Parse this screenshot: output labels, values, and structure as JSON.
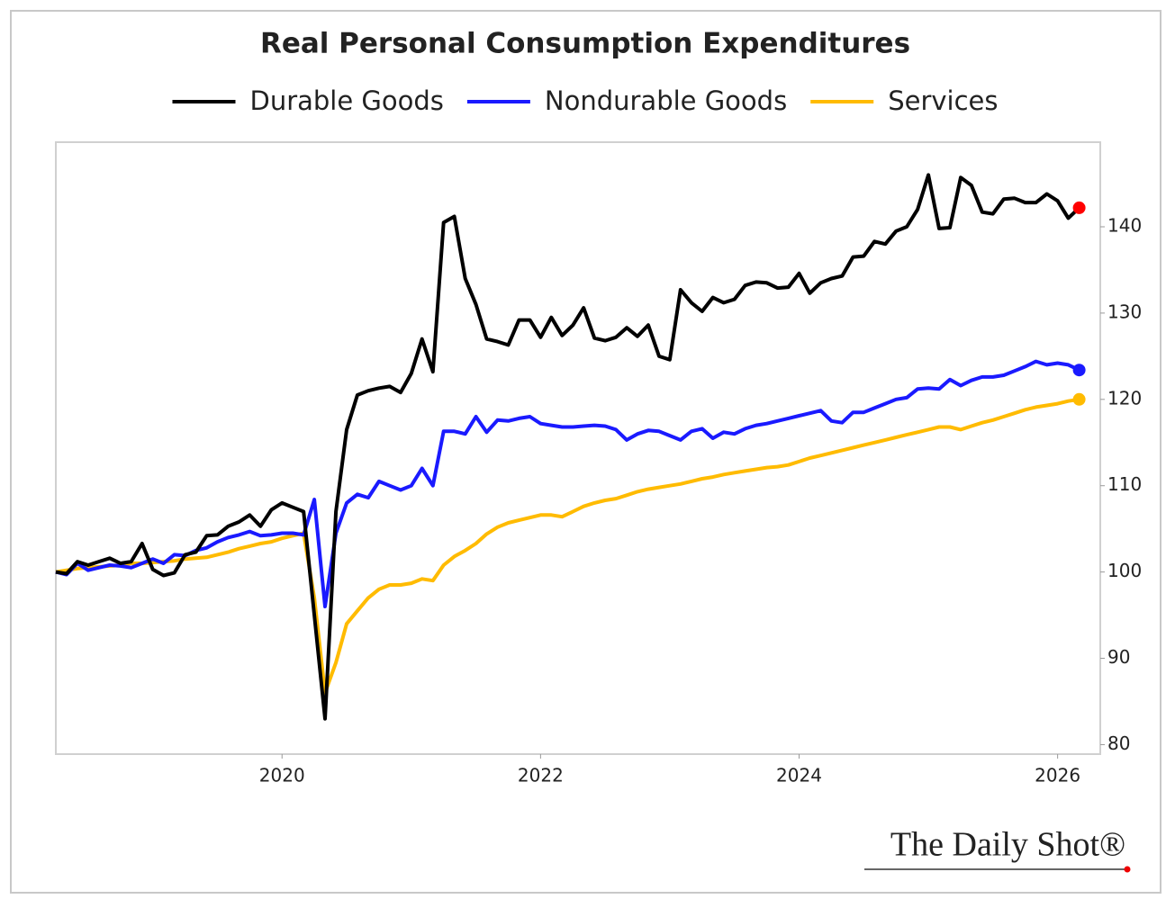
{
  "chart_data": {
    "type": "line",
    "title": "Real Personal Consumption Expenditures",
    "credit": "The Daily Shot®",
    "x": [
      2018.25,
      2018.333,
      2018.417,
      2018.5,
      2018.583,
      2018.667,
      2018.75,
      2018.833,
      2018.917,
      2019,
      2019.083,
      2019.167,
      2019.25,
      2019.333,
      2019.417,
      2019.5,
      2019.583,
      2019.667,
      2019.75,
      2019.833,
      2019.917,
      2020,
      2020.083,
      2020.167,
      2020.25,
      2020.333,
      2020.417,
      2020.5,
      2020.583,
      2020.667,
      2020.75,
      2020.833,
      2020.917,
      2021,
      2021.083,
      2021.167,
      2021.25,
      2021.333,
      2021.417,
      2021.5,
      2021.583,
      2021.667,
      2021.75,
      2021.833,
      2021.917,
      2022,
      2022.083,
      2022.167,
      2022.25,
      2022.333,
      2022.417,
      2022.5,
      2022.583,
      2022.667,
      2022.75,
      2022.833,
      2022.917,
      2023,
      2023.083,
      2023.167,
      2023.25,
      2023.333,
      2023.417,
      2023.5,
      2023.583,
      2023.667,
      2023.75,
      2023.833,
      2023.917,
      2024,
      2024.083,
      2024.167,
      2024.25,
      2024.333,
      2024.417,
      2024.5,
      2024.583,
      2024.667,
      2024.75,
      2024.833,
      2024.917,
      2025,
      2025.083,
      2025.167,
      2025.25,
      2025.333,
      2025.417,
      2025.5,
      2025.583,
      2025.667,
      2025.75,
      2025.833,
      2025.917,
      2026,
      2026.083,
      2026.167
    ],
    "series": [
      {
        "name": "Durable Goods",
        "color": "#000000",
        "marker_color": "#ff0000",
        "values": [
          100,
          99.8,
          101.2,
          100.8,
          101.2,
          101.6,
          101,
          101.2,
          103.3,
          100.3,
          99.6,
          99.9,
          102,
          102.3,
          104.2,
          104.3,
          105.3,
          105.8,
          106.6,
          105.3,
          107.2,
          108,
          107.5,
          107,
          95,
          83,
          107,
          116.5,
          120.5,
          121,
          121.3,
          121.5,
          120.8,
          123,
          127,
          123.2,
          140.5,
          141.2,
          134,
          131,
          127,
          126.7,
          126.3,
          129.2,
          129.2,
          127.2,
          129.5,
          127.4,
          128.6,
          130.6,
          127.1,
          126.8,
          127.2,
          128.3,
          127.3,
          128.6,
          125,
          124.6,
          132.7,
          131.2,
          130.2,
          131.8,
          131.2,
          131.6,
          133.2,
          133.6,
          133.5,
          132.9,
          133,
          134.6,
          132.3,
          133.5,
          134,
          134.3,
          136.5,
          136.6,
          138.3,
          138,
          139.5,
          140,
          142,
          146,
          139.8,
          139.9,
          145.7,
          144.8,
          141.7,
          141.5,
          143.2,
          143.3,
          142.8,
          142.8,
          143.8,
          143,
          141,
          142.2
        ]
      },
      {
        "name": "Nondurable Goods",
        "color": "#1a1aff",
        "marker_color": "#1a1aff",
        "values": [
          100,
          99.7,
          101,
          100.2,
          100.5,
          100.8,
          100.7,
          100.5,
          101,
          101.5,
          101,
          102,
          101.9,
          102.5,
          102.8,
          103.5,
          104,
          104.3,
          104.7,
          104.2,
          104.3,
          104.5,
          104.5,
          104.3,
          108.4,
          96,
          104.5,
          108,
          109,
          108.6,
          110.5,
          110,
          109.5,
          110,
          112,
          110,
          116.3,
          116.3,
          116,
          118,
          116.2,
          117.6,
          117.5,
          117.8,
          118,
          117.2,
          117,
          116.8,
          116.8,
          116.9,
          117,
          116.9,
          116.5,
          115.3,
          116,
          116.4,
          116.3,
          115.8,
          115.3,
          116.3,
          116.6,
          115.5,
          116.2,
          116,
          116.6,
          117,
          117.2,
          117.5,
          117.8,
          118.1,
          118.4,
          118.7,
          117.5,
          117.3,
          118.5,
          118.5,
          119,
          119.5,
          120,
          120.2,
          121.2,
          121.3,
          121.2,
          122.3,
          121.6,
          122.2,
          122.6,
          122.6,
          122.8,
          123.3,
          123.8,
          124.4,
          124,
          124.2,
          124,
          123.4
        ]
      },
      {
        "name": "Services",
        "color": "#ffbb00",
        "marker_color": "#ffbb00",
        "values": [
          100,
          100.2,
          100.4,
          100.5,
          100.6,
          100.7,
          100.8,
          101,
          101,
          101.1,
          101.2,
          101.3,
          101.5,
          101.6,
          101.7,
          102,
          102.3,
          102.7,
          103,
          103.3,
          103.5,
          103.9,
          104.2,
          104.5,
          97,
          86,
          89.5,
          94,
          95.5,
          97,
          98,
          98.5,
          98.5,
          98.7,
          99.2,
          99,
          100.8,
          101.8,
          102.5,
          103.3,
          104.4,
          105.2,
          105.7,
          106,
          106.3,
          106.6,
          106.6,
          106.4,
          107,
          107.6,
          108,
          108.3,
          108.5,
          108.9,
          109.3,
          109.6,
          109.8,
          110,
          110.2,
          110.5,
          110.8,
          111,
          111.3,
          111.5,
          111.7,
          111.9,
          112.1,
          112.2,
          112.4,
          112.8,
          113.2,
          113.5,
          113.8,
          114.1,
          114.4,
          114.7,
          115,
          115.3,
          115.6,
          115.9,
          116.2,
          116.5,
          116.8,
          116.8,
          116.5,
          116.9,
          117.3,
          117.6,
          118,
          118.4,
          118.8,
          119.1,
          119.3,
          119.5,
          119.8,
          120
        ]
      }
    ],
    "xlim": [
      2018.25,
      2026.33
    ],
    "xticks": [
      2020,
      2022,
      2024,
      2026
    ],
    "ylim": [
      78.9,
      149.8
    ],
    "yticks": [
      80,
      90,
      100,
      110,
      120,
      130,
      140
    ],
    "y_axis_side": "right",
    "grid": false
  }
}
